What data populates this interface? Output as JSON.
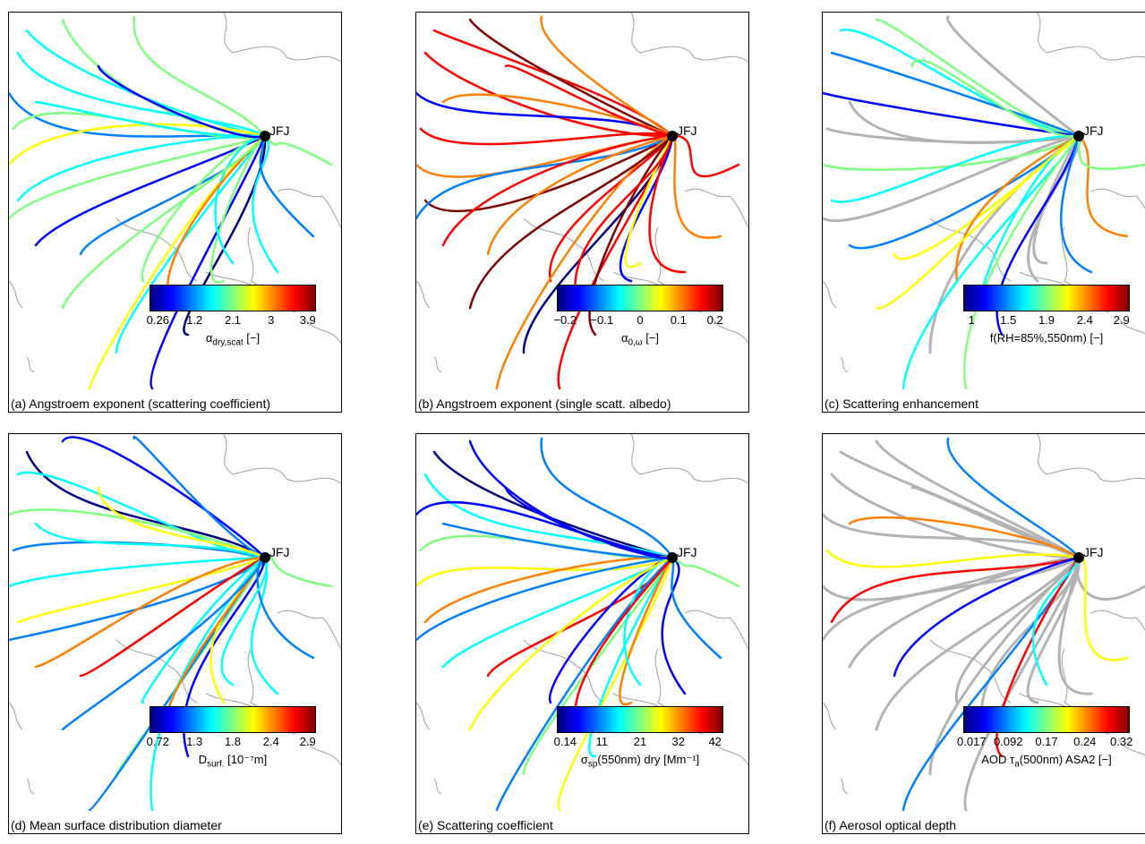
{
  "station": "JFJ",
  "colormap": [
    "#00007f",
    "#0000ff",
    "#007fff",
    "#00ffff",
    "#7fff7f",
    "#ffff00",
    "#ff7f00",
    "#ff0000",
    "#7f0000"
  ],
  "gray": "#b3b3b3",
  "panels": [
    {
      "caption": "(a) Angstroem exponent (scattering coefficient)",
      "ticks": [
        "0.26",
        "1.2",
        "2.1",
        "3",
        "3.9"
      ],
      "label": {
        "pre": "α",
        "sub": "dry,scat",
        "sup": "",
        "post": " [−]"
      },
      "palette": [
        3,
        4,
        4,
        3,
        2,
        4,
        5,
        3,
        4,
        1,
        2,
        4,
        3,
        5,
        1,
        0,
        4,
        3,
        2,
        4,
        3,
        6,
        4,
        3,
        1
      ]
    },
    {
      "caption": "(b) Angstroem exponent (single scatt. albedo)",
      "ticks": [
        "−0.2",
        "−0.1",
        "0",
        "0.1",
        "0.2"
      ],
      "label": {
        "pre": "α",
        "sub": "0,ω",
        "sup": "",
        "post": " [−]"
      },
      "palette": [
        7,
        8,
        6,
        7,
        1,
        7,
        6,
        8,
        2,
        7,
        6,
        7,
        0,
        6,
        7,
        8,
        1,
        7,
        6,
        7,
        5,
        7,
        8,
        6,
        7
      ]
    },
    {
      "caption": "(c) Scattering enhancement",
      "ticks": [
        "1",
        "1.5",
        "1.9",
        "2.4",
        "2.9"
      ],
      "label": {
        "pre": "f(RH=85%,550nm)",
        "sub": "",
        "sup": "",
        "post": " [−]"
      },
      "palette": [
        3,
        4,
        -1,
        2,
        1,
        -1,
        4,
        3,
        -1,
        2,
        5,
        6,
        -1,
        3,
        4,
        1,
        -1,
        2,
        6,
        4,
        -1,
        3,
        5,
        -1,
        4
      ]
    },
    {
      "caption": "(d) Mean surface distribution diameter",
      "ticks": [
        "0.72",
        "1.3",
        "1.8",
        "2.4",
        "2.9"
      ],
      "label": {
        "pre": "D",
        "sub": "surf.",
        "sup": "",
        "post": " [10⁻⁷m]"
      },
      "palette": [
        0,
        1,
        2,
        3,
        4,
        2,
        3,
        5,
        2,
        6,
        7,
        3,
        4,
        2,
        3,
        1,
        5,
        3,
        2,
        4,
        3,
        6,
        2,
        3,
        5
      ]
    },
    {
      "caption": "(e) Scattering coefficient",
      "ticks": [
        "0.14",
        "11",
        "21",
        "32",
        "42"
      ],
      "label": {
        "pre": "σ",
        "sub": "sp",
        "sup": "",
        "post": "(550nm) dry [Mm⁻¹]"
      },
      "palette": [
        0,
        1,
        2,
        3,
        1,
        4,
        5,
        6,
        2,
        3,
        7,
        1,
        4,
        2,
        5,
        3,
        6,
        1,
        2,
        4,
        3,
        7,
        5,
        2,
        1
      ]
    },
    {
      "caption": "(f) Aerosol optical depth",
      "ticks": [
        "0.017",
        "0.092",
        "0.17",
        "0.24",
        "0.32"
      ],
      "label": {
        "pre": "AOD τ",
        "sub": "a",
        "sup": "",
        "post": "(500nm) ASA2 [−]"
      },
      "palette": [
        -1,
        -1,
        2,
        -1,
        -1,
        5,
        -1,
        7,
        -1,
        -1,
        1,
        -1,
        -1,
        2,
        -1,
        7,
        -1,
        -1,
        5,
        -1,
        3,
        -1,
        -1,
        6,
        -1
      ]
    }
  ]
}
